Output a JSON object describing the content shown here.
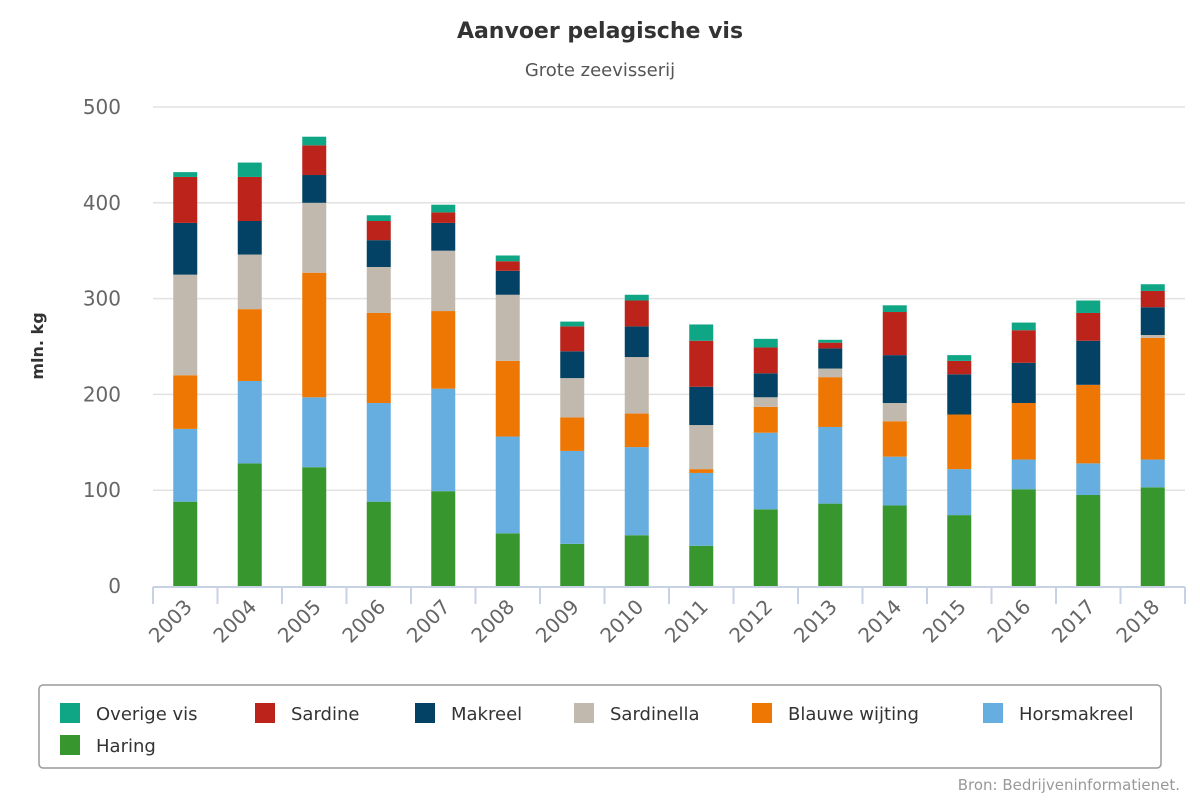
{
  "chart_data": {
    "type": "bar",
    "stacked": true,
    "title": "Aanvoer pelagische vis",
    "subtitle": "Grote zeevisserij",
    "xlabel": "",
    "ylabel": "mln. kg",
    "ylim": [
      0,
      500
    ],
    "yticks": [
      0,
      100,
      200,
      300,
      400,
      500
    ],
    "grid": true,
    "legend_position": "bottom",
    "source": "Bron: Bedrijveninformatienet.",
    "categories": [
      "2003",
      "2004",
      "2005",
      "2006",
      "2007",
      "2008",
      "2009",
      "2010",
      "2011",
      "2012",
      "2013",
      "2014",
      "2015",
      "2016",
      "2017",
      "2018"
    ],
    "series": [
      {
        "name": "Haring",
        "color": "#38962f",
        "values": [
          88,
          128,
          124,
          88,
          99,
          55,
          44,
          53,
          42,
          80,
          86,
          84,
          74,
          101,
          95,
          103
        ]
      },
      {
        "name": "Horsmakreel",
        "color": "#67aee0",
        "values": [
          76,
          86,
          73,
          103,
          107,
          101,
          97,
          92,
          76,
          80,
          80,
          51,
          48,
          31,
          33,
          29
        ]
      },
      {
        "name": "Blauwe wijting",
        "color": "#ee7703",
        "values": [
          56,
          75,
          130,
          94,
          81,
          79,
          35,
          35,
          4,
          27,
          52,
          37,
          57,
          59,
          82,
          127
        ]
      },
      {
        "name": "Sardinella",
        "color": "#c1b9ad",
        "values": [
          105,
          57,
          73,
          48,
          63,
          69,
          41,
          59,
          46,
          10,
          9,
          19,
          0,
          0,
          0,
          3
        ]
      },
      {
        "name": "Makreel",
        "color": "#034264",
        "values": [
          54,
          35,
          29,
          28,
          29,
          25,
          28,
          32,
          40,
          25,
          21,
          50,
          42,
          42,
          46,
          29
        ]
      },
      {
        "name": "Sardine",
        "color": "#bc241b",
        "values": [
          48,
          46,
          31,
          20,
          11,
          10,
          26,
          27,
          48,
          27,
          6,
          45,
          14,
          34,
          29,
          17
        ]
      },
      {
        "name": "Overige vis",
        "color": "#0ea685",
        "values": [
          5,
          15,
          9,
          6,
          8,
          6,
          5,
          6,
          17,
          9,
          3,
          7,
          6,
          8,
          13,
          7
        ]
      }
    ],
    "legend_order": [
      "Overige vis",
      "Sardine",
      "Makreel",
      "Sardinella",
      "Blauwe wijting",
      "Horsmakreel",
      "Haring"
    ]
  }
}
